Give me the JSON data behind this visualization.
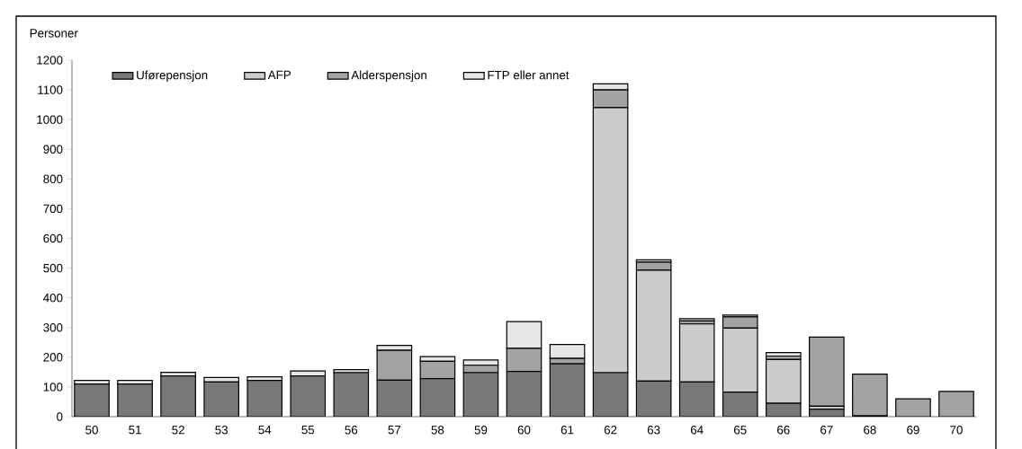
{
  "chart_data": {
    "type": "bar",
    "stacked": true,
    "ylabel": "Personer",
    "categories": [
      "50",
      "51",
      "52",
      "53",
      "54",
      "55",
      "56",
      "57",
      "58",
      "59",
      "60",
      "61",
      "62",
      "63",
      "64",
      "65",
      "66",
      "67",
      "68",
      "69",
      "70"
    ],
    "series": [
      {
        "name": "Uførepensjon",
        "color": "#787878",
        "values": [
          110,
          110,
          137,
          117,
          122,
          137,
          148,
          123,
          128,
          148,
          152,
          178,
          148,
          120,
          117,
          83,
          45,
          25,
          3,
          0,
          0
        ]
      },
      {
        "name": "AFP",
        "color": "#cccccc",
        "values": [
          0,
          0,
          0,
          0,
          0,
          0,
          0,
          0,
          0,
          0,
          0,
          0,
          892,
          373,
          195,
          215,
          147,
          10,
          0,
          0,
          0
        ]
      },
      {
        "name": "Alderspensjon",
        "color": "#a3a3a3",
        "values": [
          0,
          0,
          0,
          0,
          0,
          0,
          0,
          100,
          58,
          25,
          78,
          18,
          60,
          27,
          10,
          38,
          12,
          233,
          140,
          60,
          85
        ]
      },
      {
        "name": "FTP eller annet",
        "color": "#e6e6e6",
        "values": [
          12,
          12,
          12,
          15,
          12,
          17,
          10,
          17,
          16,
          18,
          90,
          47,
          20,
          8,
          8,
          6,
          12,
          null,
          null,
          0,
          0
        ]
      }
    ],
    "ylim": [
      0,
      1200
    ],
    "yticks": [
      0,
      100,
      200,
      300,
      400,
      500,
      600,
      700,
      800,
      900,
      1000,
      1100,
      1200
    ],
    "grid": false,
    "legend": "top"
  }
}
